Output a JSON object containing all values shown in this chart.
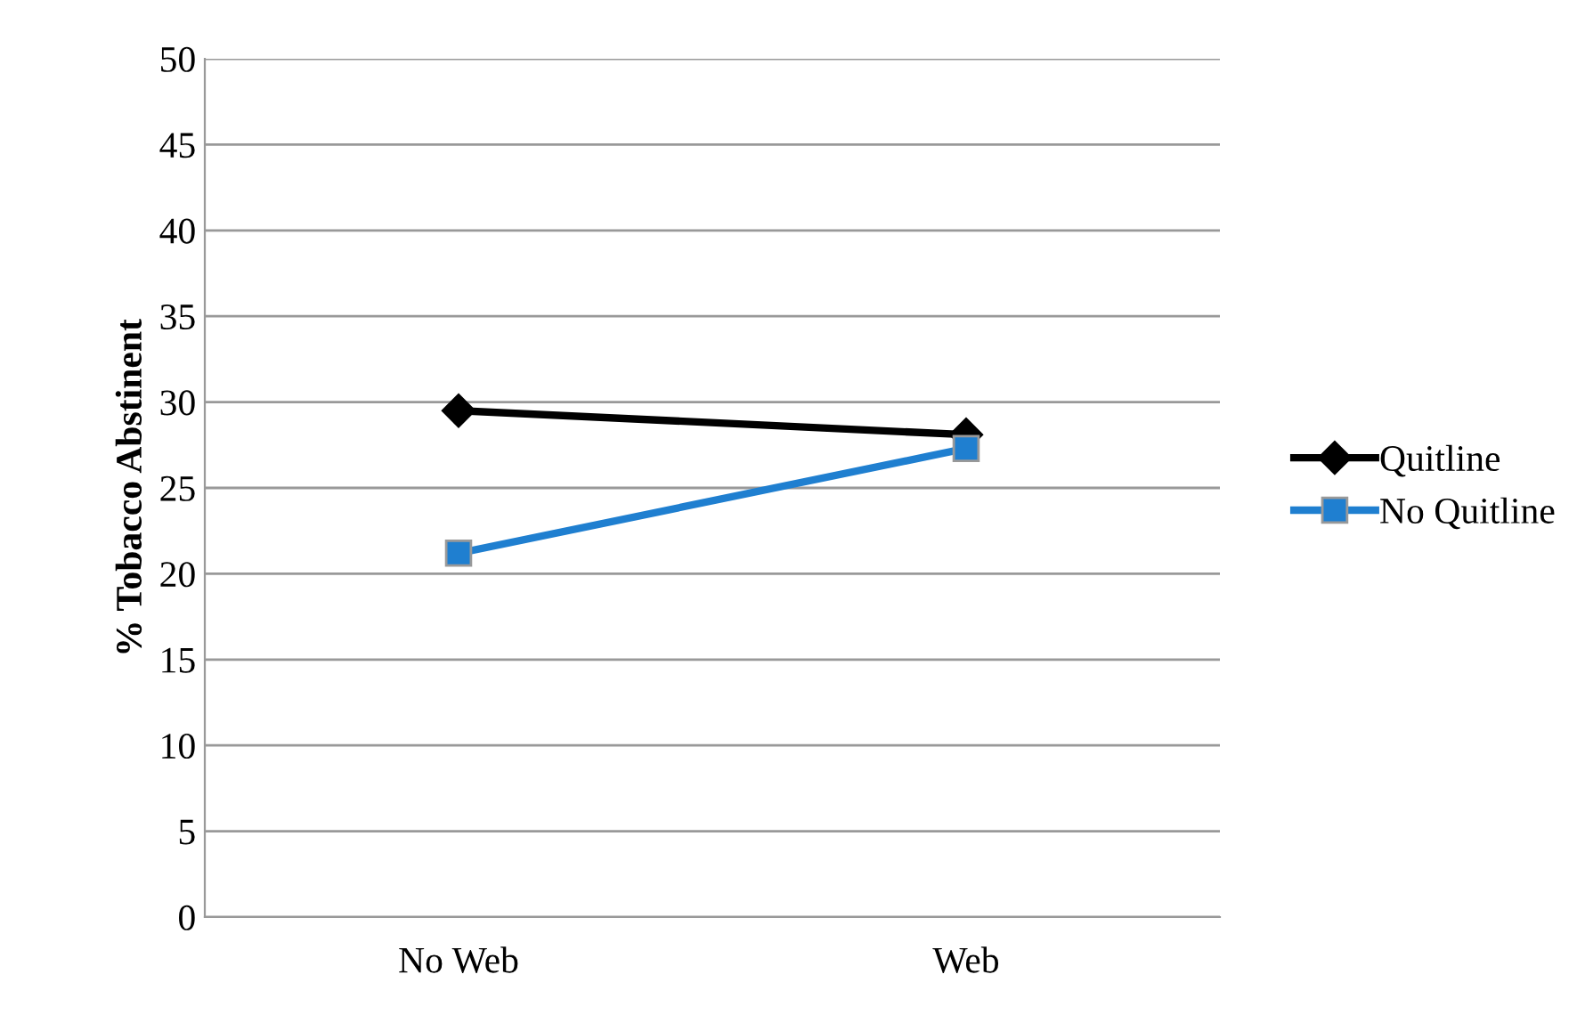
{
  "chart_data": {
    "type": "line",
    "ylabel": "% Tobacco Abstinent",
    "categories": [
      "No Web",
      "Web"
    ],
    "series": [
      {
        "name": "Quitline",
        "color": "#000000",
        "marker": "diamond",
        "values": [
          29.5,
          28.1
        ]
      },
      {
        "name": "No Quitline",
        "color": "#1f7fd0",
        "marker": "square",
        "values": [
          21.2,
          27.3
        ]
      }
    ],
    "ylim": [
      0,
      50
    ],
    "yticks": [
      0,
      5,
      10,
      15,
      20,
      25,
      30,
      35,
      40,
      45,
      50
    ],
    "grid": "y",
    "legend": "right"
  }
}
